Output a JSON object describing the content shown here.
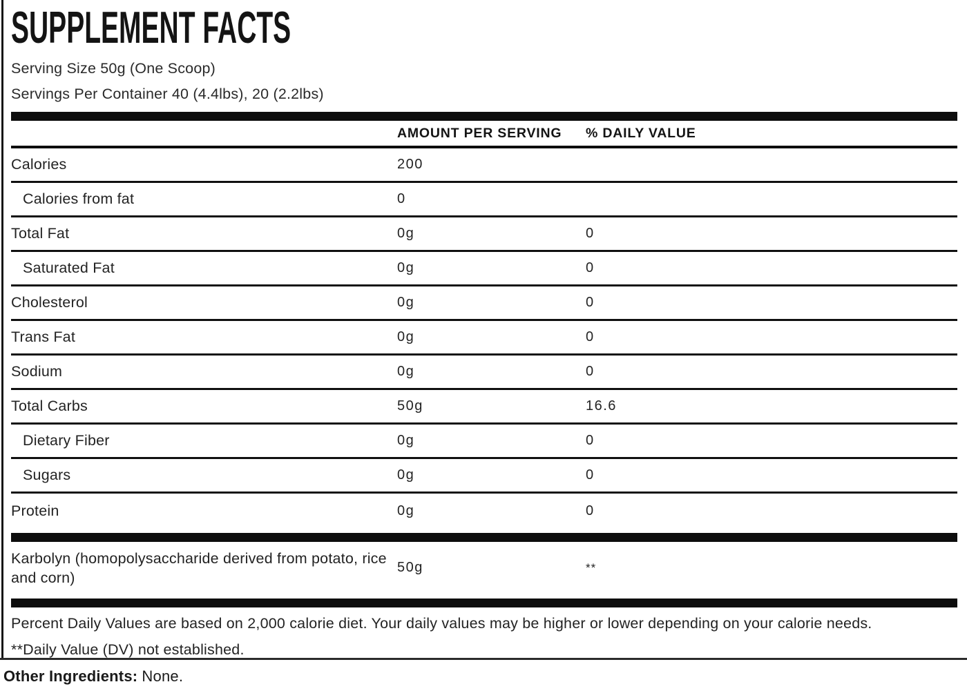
{
  "title": "SUPPLEMENT FACTS",
  "serving": {
    "size_line": "Serving Size 50g (One Scoop)",
    "per_container_line": "Servings Per Container 40 (4.4lbs), 20 (2.2lbs)"
  },
  "table": {
    "headers": {
      "amount": "AMOUNT PER SERVING",
      "daily_value": "% DAILY VALUE"
    },
    "rows": [
      {
        "label": "Calories",
        "amount": "200",
        "dv": "",
        "indent": false
      },
      {
        "label": "Calories from fat",
        "amount": "0",
        "dv": "",
        "indent": true
      },
      {
        "label": "Total Fat",
        "amount": "0g",
        "dv": "0",
        "indent": false
      },
      {
        "label": "Saturated Fat",
        "amount": "0g",
        "dv": "0",
        "indent": true
      },
      {
        "label": "Cholesterol",
        "amount": "0g",
        "dv": "0",
        "indent": false
      },
      {
        "label": "Trans Fat",
        "amount": "0g",
        "dv": "0",
        "indent": false
      },
      {
        "label": "Sodium",
        "amount": "0g",
        "dv": "0",
        "indent": false
      },
      {
        "label": "Total Carbs",
        "amount": "50g",
        "dv": "16.6",
        "indent": false
      },
      {
        "label": "Dietary Fiber",
        "amount": "0g",
        "dv": "0",
        "indent": true
      },
      {
        "label": "Sugars",
        "amount": "0g",
        "dv": "0",
        "indent": true
      },
      {
        "label": "Protein",
        "amount": "0g",
        "dv": "0",
        "indent": false
      }
    ],
    "special_row": {
      "label": "Karbolyn (homopolysaccharide derived from potato, rice and corn)",
      "amount": "50g",
      "dv": "**"
    }
  },
  "footnotes": {
    "daily_values": "Percent Daily Values are based on 2,000 calorie diet. Your daily values may be higher or lower depending on your calorie needs.",
    "dv_not_established": "**Daily Value (DV) not established."
  },
  "other_ingredients": {
    "label": "Other Ingredients:",
    "value": "None."
  },
  "colors": {
    "bar": "#0d0d0d",
    "text": "#1c1c1c",
    "background": "#ffffff"
  }
}
